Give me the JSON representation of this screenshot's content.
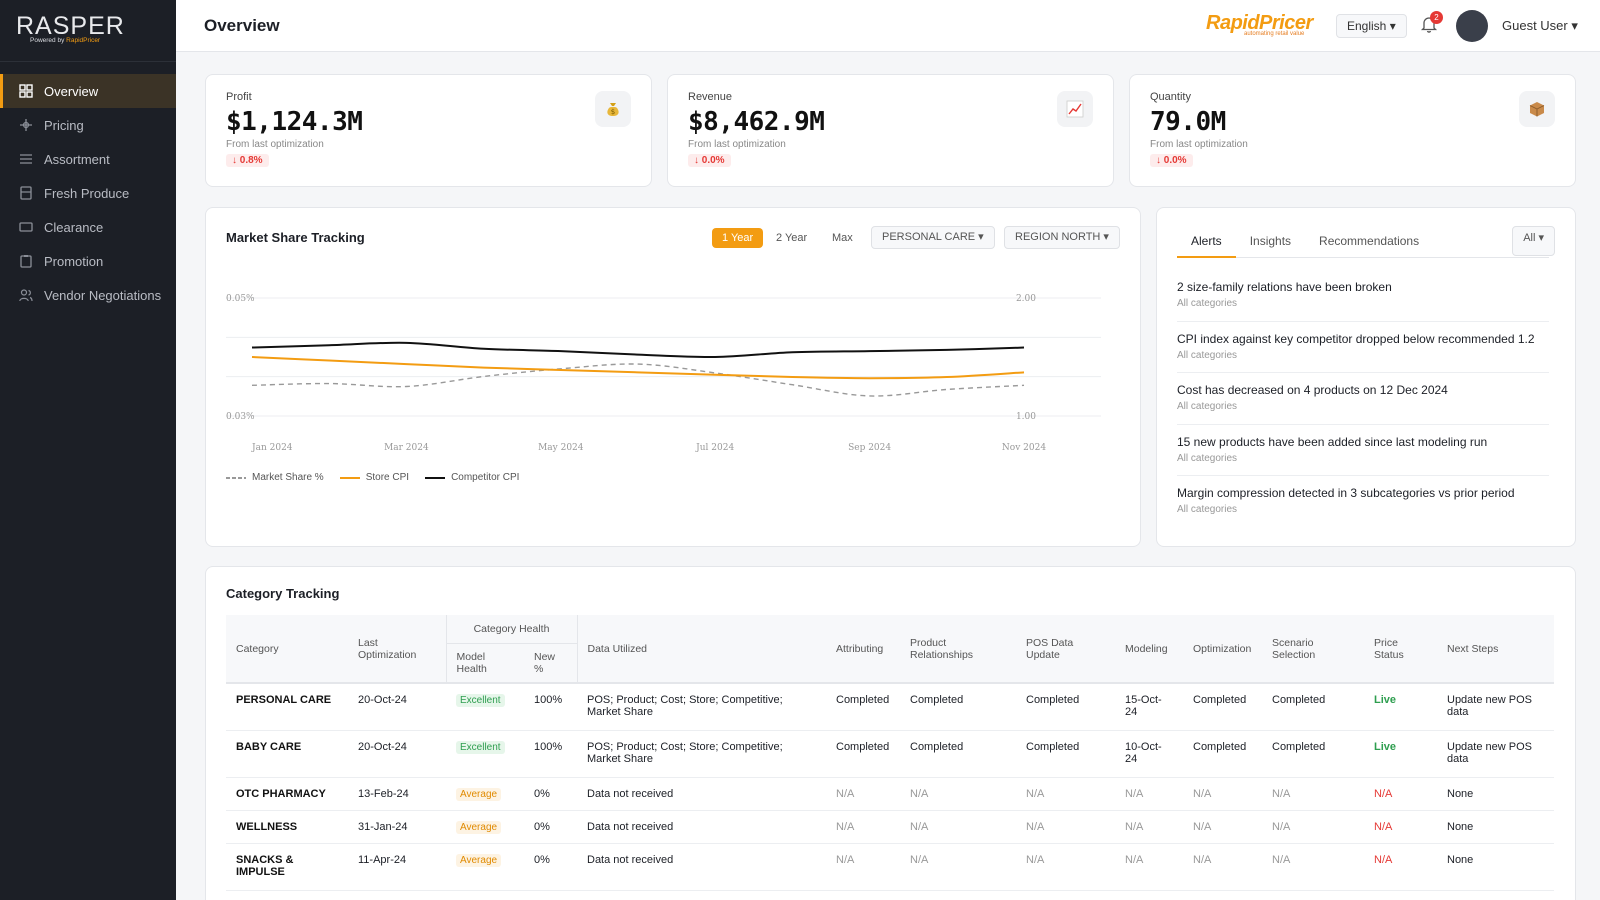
{
  "sidebar": {
    "logo": "RASPER",
    "logo_sub_prefix": "Powered by ",
    "logo_sub_brand": "RapidPricer",
    "items": [
      {
        "label": "Overview",
        "icon": "grid-icon",
        "active": true
      },
      {
        "label": "Pricing",
        "icon": "pricing-icon"
      },
      {
        "label": "Assortment",
        "icon": "list-icon"
      },
      {
        "label": "Fresh Produce",
        "icon": "box-icon"
      },
      {
        "label": "Clearance",
        "icon": "clearance-icon"
      },
      {
        "label": "Promotion",
        "icon": "clipboard-icon"
      },
      {
        "label": "Vendor Negotiations",
        "icon": "users-icon"
      }
    ]
  },
  "header": {
    "title": "Overview",
    "brand": "RapidPricer",
    "brand_tag": "automating retail value",
    "language": "English ▾",
    "notification_count": "2",
    "user": "Guest User ▾"
  },
  "kpis": [
    {
      "label": "Profit",
      "value": "$1,124.3M",
      "sub": "From last optimization",
      "delta": "↓ 0.8%",
      "icon": "money-bag-icon"
    },
    {
      "label": "Revenue",
      "value": "$8,462.9M",
      "sub": "From last optimization",
      "delta": "↓ 0.0%",
      "icon": "trend-chart-icon"
    },
    {
      "label": "Quantity",
      "value": "79.0M",
      "sub": "From last optimization",
      "delta": "↓ 0.0%",
      "icon": "package-icon"
    }
  ],
  "market": {
    "title": "Market Share Tracking",
    "ranges": [
      "1 Year",
      "2 Year",
      "Max"
    ],
    "active_range": "1 Year",
    "category_filter": "PERSONAL CARE ▾",
    "region_filter": "REGION NORTH ▾"
  },
  "chart_data": {
    "type": "line",
    "x": [
      "Jan 2024",
      "Feb 2024",
      "Mar 2024",
      "Apr 2024",
      "May 2024",
      "Jun 2024",
      "Jul 2024",
      "Aug 2024",
      "Sep 2024",
      "Oct 2024",
      "Nov 2024"
    ],
    "x_tick_labels": [
      "Jan 2024",
      "Mar 2024",
      "May 2024",
      "Jul 2024",
      "Sep 2024",
      "Nov 2024"
    ],
    "left_axis": {
      "ylim": [
        0.03,
        0.05
      ],
      "tick_labels": [
        "0.05%",
        "0.03%"
      ]
    },
    "right_axis": {
      "ylim": [
        1.0,
        2.0
      ],
      "tick_labels": [
        "2.00",
        "1.00"
      ]
    },
    "grid": true,
    "legend": "bottom-left",
    "series": [
      {
        "name": "Market Share %",
        "axis": "left",
        "color": "#999999",
        "dash": true,
        "values": [
          0.0352,
          0.0355,
          0.035,
          0.0367,
          0.038,
          0.0388,
          0.0373,
          0.0353,
          0.0334,
          0.0345,
          0.0352
        ]
      },
      {
        "name": "Store CPI",
        "axis": "right",
        "color": "#f39c12",
        "values": [
          1.5,
          1.47,
          1.44,
          1.41,
          1.39,
          1.37,
          1.35,
          1.33,
          1.32,
          1.33,
          1.37
        ]
      },
      {
        "name": "Competitor CPI",
        "axis": "right",
        "color": "#111111",
        "values": [
          1.58,
          1.6,
          1.62,
          1.57,
          1.55,
          1.52,
          1.5,
          1.54,
          1.55,
          1.56,
          1.58
        ]
      }
    ]
  },
  "alerts": {
    "tabs": [
      "Alerts",
      "Insights",
      "Recommendations"
    ],
    "active_tab": "Alerts",
    "filter": "All ▾",
    "items": [
      {
        "text": "2 size-family relations have been broken",
        "sub": "All categories"
      },
      {
        "text": "CPI index against key competitor dropped below recommended 1.2",
        "sub": "All categories"
      },
      {
        "text": "Cost has decreased on 4 products on 12 Dec 2024",
        "sub": "All categories"
      },
      {
        "text": "15 new products have been added since last modeling run",
        "sub": "All categories"
      },
      {
        "text": "Margin compression detected in 3 subcategories vs prior period",
        "sub": "All categories"
      }
    ]
  },
  "category": {
    "title": "Category Tracking",
    "headers": {
      "category": "Category",
      "last_opt": "Last Optimization",
      "health_group": "Category Health",
      "model_health": "Model Health",
      "new_pct": "New %",
      "data_utilized": "Data Utilized",
      "attributing": "Attributing",
      "product_rel": "Product Relationships",
      "pos_update": "POS Data Update",
      "modeling": "Modeling",
      "optimization": "Optimization",
      "scenario": "Scenario Selection",
      "price_status": "Price Status",
      "next_steps": "Next Steps"
    },
    "rows": [
      {
        "category": "PERSONAL CARE",
        "last_opt": "20-Oct-24",
        "health": "Excellent",
        "health_level": "excellent",
        "new_pct": "100%",
        "data": "POS; Product; Cost; Store; Competitive; Market Share",
        "attributing": "Completed",
        "product_rel": "Completed",
        "pos_update": "Completed",
        "modeling": "15-Oct-24",
        "optimization": "Completed",
        "scenario": "Completed",
        "price_status": "Live",
        "status_level": "live",
        "next": "Update new POS data"
      },
      {
        "category": "BABY CARE",
        "last_opt": "20-Oct-24",
        "health": "Excellent",
        "health_level": "excellent",
        "new_pct": "100%",
        "data": "POS; Product; Cost; Store; Competitive; Market Share",
        "attributing": "Completed",
        "product_rel": "Completed",
        "pos_update": "Completed",
        "modeling": "10-Oct-24",
        "optimization": "Completed",
        "scenario": "Completed",
        "price_status": "Live",
        "status_level": "live",
        "next": "Update new POS data"
      },
      {
        "category": "OTC PHARMACY",
        "last_opt": "13-Feb-24",
        "health": "Average",
        "health_level": "average",
        "new_pct": "0%",
        "data": "Data not received",
        "attributing": "N/A",
        "product_rel": "N/A",
        "pos_update": "N/A",
        "modeling": "N/A",
        "optimization": "N/A",
        "scenario": "N/A",
        "price_status": "N/A",
        "status_level": "na",
        "next": "None"
      },
      {
        "category": "WELLNESS",
        "last_opt": "31-Jan-24",
        "health": "Average",
        "health_level": "average",
        "new_pct": "0%",
        "data": "Data not received",
        "attributing": "N/A",
        "product_rel": "N/A",
        "pos_update": "N/A",
        "modeling": "N/A",
        "optimization": "N/A",
        "scenario": "N/A",
        "price_status": "N/A",
        "status_level": "na",
        "next": "None"
      },
      {
        "category": "SNACKS & IMPULSE",
        "last_opt": "11-Apr-24",
        "health": "Average",
        "health_level": "average",
        "new_pct": "0%",
        "data": "Data not received",
        "attributing": "N/A",
        "product_rel": "N/A",
        "pos_update": "N/A",
        "modeling": "N/A",
        "optimization": "N/A",
        "scenario": "N/A",
        "price_status": "N/A",
        "status_level": "na",
        "next": "None"
      }
    ]
  },
  "colors": {
    "accent": "#f39c12",
    "sidebar_bg": "#1c1f26",
    "success": "#2e9e4f",
    "danger": "#e53935"
  }
}
